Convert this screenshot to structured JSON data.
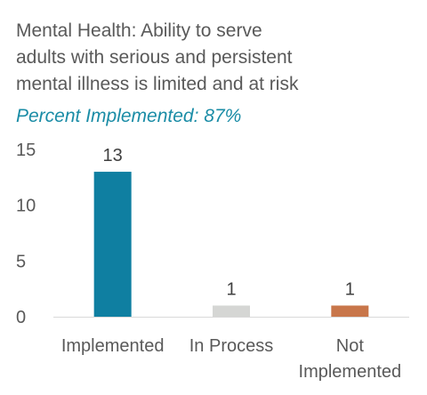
{
  "chart_data": {
    "type": "bar",
    "title_lines": [
      "Mental Health: Ability to serve",
      "adults with serious and persistent",
      "mental illness is limited and at risk"
    ],
    "subtitle": "Percent Implemented: 87%",
    "categories": [
      [
        "Implemented"
      ],
      [
        "In Process"
      ],
      [
        "Not",
        "Implemented"
      ]
    ],
    "values": [
      13,
      1,
      1
    ],
    "value_labels": [
      "13",
      "1",
      "1"
    ],
    "bar_colors": [
      "#0f7fa1",
      "#d5d6d4",
      "#c8764a"
    ],
    "yticks": [
      "0",
      "5",
      "10",
      "15"
    ],
    "ylim": [
      0,
      15
    ],
    "xlabel": "",
    "ylabel": "",
    "grid": false,
    "legend": false
  },
  "colors": {
    "title": "#595959",
    "subtitle": "#1a8ca6",
    "axis_text": "#595959",
    "baseline": "#d9d9d9"
  }
}
